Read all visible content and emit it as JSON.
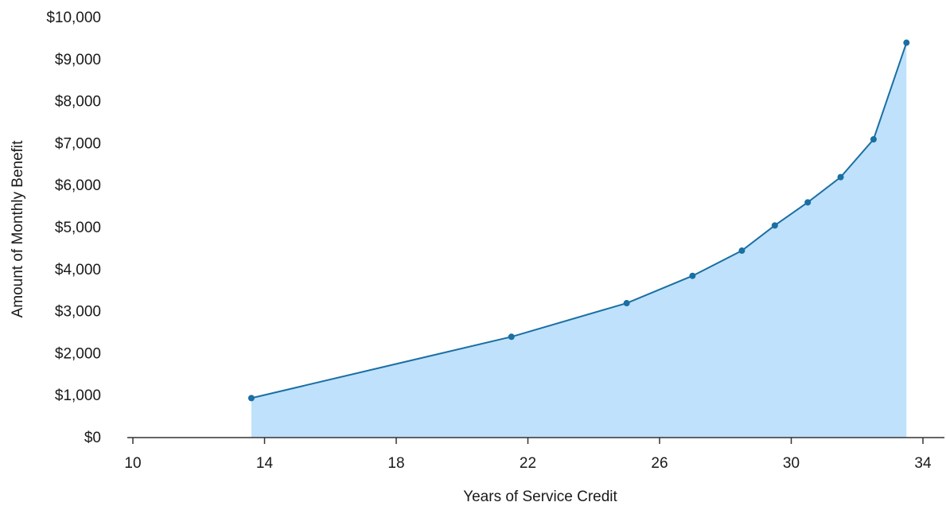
{
  "chart_data": {
    "type": "area",
    "xlabel": "Years of Service Credit",
    "ylabel": "Amount of Monthly Benefit",
    "xlim": [
      10,
      34
    ],
    "ylim": [
      0,
      10000
    ],
    "x_ticks": [
      10,
      14,
      18,
      22,
      26,
      30,
      34
    ],
    "x_tick_labels": [
      "10",
      "14",
      "18",
      "22",
      "26",
      "30",
      "34"
    ],
    "y_ticks": [
      0,
      1000,
      2000,
      3000,
      4000,
      5000,
      6000,
      7000,
      8000,
      9000,
      10000
    ],
    "y_tick_labels": [
      "$0",
      "$1,000",
      "$2,000",
      "$3,000",
      "$4,000",
      "$5,000",
      "$6,000",
      "$7,000",
      "$8,000",
      "$9,000",
      "$10,000"
    ],
    "grid": false,
    "legend": "none",
    "series": [
      {
        "x": [
          13.6,
          21.5,
          25.0,
          27.0,
          28.5,
          29.5,
          30.5,
          31.5,
          32.5,
          33.5
        ],
        "values": [
          940,
          2400,
          3200,
          3850,
          4450,
          5050,
          5600,
          6200,
          7100,
          9400
        ]
      }
    ],
    "colors": {
      "line": "#1a6fa3",
      "fill": "#bfe1fb",
      "axis": "#333333"
    }
  }
}
